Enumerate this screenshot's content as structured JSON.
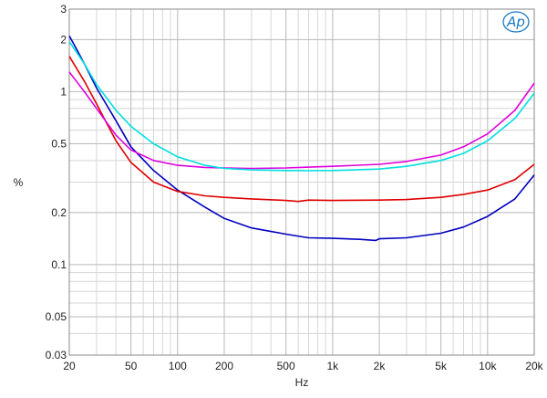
{
  "chart_data": {
    "type": "line",
    "title": "",
    "xlabel": "Hz",
    "ylabel": "%",
    "x_scale": "log",
    "y_scale": "log",
    "xlim": [
      20,
      20000
    ],
    "ylim": [
      0.03,
      3
    ],
    "grid": true,
    "logo_text": "Ap",
    "x_ticks": [
      {
        "value": 20,
        "label": "20"
      },
      {
        "value": 50,
        "label": "50"
      },
      {
        "value": 100,
        "label": "100"
      },
      {
        "value": 200,
        "label": "200"
      },
      {
        "value": 500,
        "label": "500"
      },
      {
        "value": 1000,
        "label": "1k"
      },
      {
        "value": 2000,
        "label": "2k"
      },
      {
        "value": 5000,
        "label": "5k"
      },
      {
        "value": 10000,
        "label": "10k"
      },
      {
        "value": 20000,
        "label": "20k"
      }
    ],
    "y_ticks": [
      {
        "value": 3,
        "label": "3"
      },
      {
        "value": 2,
        "label": "2"
      },
      {
        "value": 1,
        "label": "1"
      },
      {
        "value": 0.5,
        "label": "0.5"
      },
      {
        "value": 0.2,
        "label": "0.2"
      },
      {
        "value": 0.1,
        "label": "0.1"
      },
      {
        "value": 0.05,
        "label": "0.05"
      },
      {
        "value": 0.03,
        "label": "0.03"
      }
    ],
    "series": [
      {
        "color": "#0000c0",
        "points": [
          [
            20,
            2.1
          ],
          [
            22,
            1.8
          ],
          [
            25,
            1.45
          ],
          [
            30,
            1.05
          ],
          [
            40,
            0.68
          ],
          [
            50,
            0.48
          ],
          [
            70,
            0.35
          ],
          [
            100,
            0.27
          ],
          [
            150,
            0.215
          ],
          [
            200,
            0.185
          ],
          [
            300,
            0.163
          ],
          [
            500,
            0.15
          ],
          [
            700,
            0.143
          ],
          [
            1000,
            0.142
          ],
          [
            1500,
            0.14
          ],
          [
            1900,
            0.138
          ],
          [
            2000,
            0.141
          ],
          [
            3000,
            0.143
          ],
          [
            5000,
            0.152
          ],
          [
            7000,
            0.165
          ],
          [
            10000,
            0.19
          ],
          [
            15000,
            0.24
          ],
          [
            20000,
            0.33
          ]
        ]
      },
      {
        "color": "#e00000",
        "points": [
          [
            20,
            1.6
          ],
          [
            25,
            1.15
          ],
          [
            30,
            0.85
          ],
          [
            40,
            0.52
          ],
          [
            50,
            0.39
          ],
          [
            70,
            0.3
          ],
          [
            100,
            0.265
          ],
          [
            150,
            0.25
          ],
          [
            200,
            0.245
          ],
          [
            300,
            0.24
          ],
          [
            500,
            0.235
          ],
          [
            600,
            0.232
          ],
          [
            700,
            0.236
          ],
          [
            1000,
            0.235
          ],
          [
            2000,
            0.236
          ],
          [
            3000,
            0.238
          ],
          [
            5000,
            0.245
          ],
          [
            7000,
            0.255
          ],
          [
            10000,
            0.27
          ],
          [
            15000,
            0.31
          ],
          [
            20000,
            0.38
          ]
        ]
      },
      {
        "color": "#e000e0",
        "points": [
          [
            20,
            1.3
          ],
          [
            25,
            1.0
          ],
          [
            30,
            0.8
          ],
          [
            40,
            0.56
          ],
          [
            50,
            0.46
          ],
          [
            70,
            0.4
          ],
          [
            100,
            0.375
          ],
          [
            150,
            0.365
          ],
          [
            200,
            0.362
          ],
          [
            300,
            0.36
          ],
          [
            500,
            0.362
          ],
          [
            700,
            0.366
          ],
          [
            1000,
            0.37
          ],
          [
            2000,
            0.38
          ],
          [
            3000,
            0.395
          ],
          [
            5000,
            0.43
          ],
          [
            7000,
            0.48
          ],
          [
            10000,
            0.57
          ],
          [
            15000,
            0.78
          ],
          [
            20000,
            1.12
          ]
        ]
      },
      {
        "color": "#00e0e0",
        "points": [
          [
            20,
            1.95
          ],
          [
            25,
            1.45
          ],
          [
            30,
            1.1
          ],
          [
            40,
            0.78
          ],
          [
            50,
            0.63
          ],
          [
            70,
            0.5
          ],
          [
            100,
            0.42
          ],
          [
            150,
            0.375
          ],
          [
            200,
            0.36
          ],
          [
            300,
            0.353
          ],
          [
            500,
            0.35
          ],
          [
            700,
            0.349
          ],
          [
            1000,
            0.35
          ],
          [
            2000,
            0.357
          ],
          [
            3000,
            0.37
          ],
          [
            5000,
            0.4
          ],
          [
            7000,
            0.44
          ],
          [
            10000,
            0.52
          ],
          [
            15000,
            0.7
          ],
          [
            20000,
            0.98
          ]
        ]
      }
    ]
  }
}
